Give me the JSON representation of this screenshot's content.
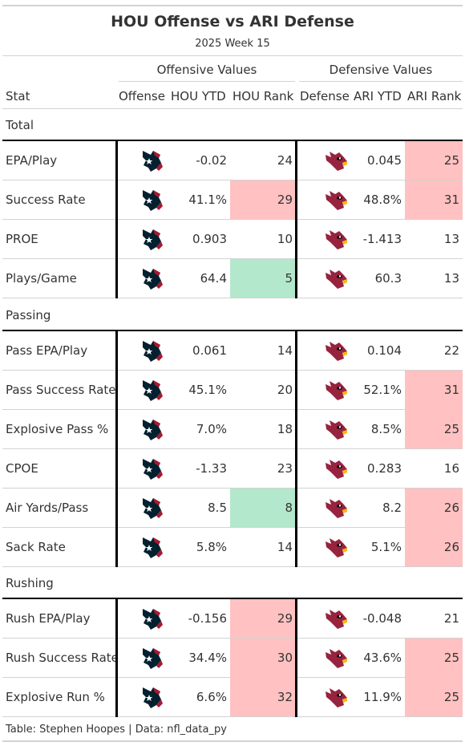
{
  "header": {
    "title": "HOU Offense vs ARI Defense",
    "subtitle": "2025 Week 15"
  },
  "spanners": {
    "offense": "Offensive Values",
    "defense": "Defensive Values"
  },
  "columns": {
    "stat": "Stat",
    "offense": "Offense",
    "off_ytd": "HOU YTD",
    "off_rank": "HOU Rank",
    "defense": "Defense",
    "def_ytd": "ARI YTD",
    "def_rank": "ARI Rank"
  },
  "colors": {
    "bad": "#ffc1c1",
    "good": "#b3e8cc",
    "texans_navy": "#03202f",
    "texans_red": "#a71930",
    "cardinals_red": "#97233f",
    "cardinals_yellow": "#ffb612"
  },
  "chart_data": {
    "type": "table",
    "groups": [
      {
        "label": "Total",
        "rows": [
          {
            "stat": "EPA/Play",
            "off_ytd": "-0.02",
            "off_rank": "24",
            "off_hl": "",
            "def_ytd": "0.045",
            "def_rank": "25",
            "def_hl": "bad"
          },
          {
            "stat": "Success Rate",
            "off_ytd": "41.1%",
            "off_rank": "29",
            "off_hl": "bad",
            "def_ytd": "48.8%",
            "def_rank": "31",
            "def_hl": "bad"
          },
          {
            "stat": "PROE",
            "off_ytd": "0.903",
            "off_rank": "10",
            "off_hl": "",
            "def_ytd": "-1.413",
            "def_rank": "13",
            "def_hl": ""
          },
          {
            "stat": "Plays/Game",
            "off_ytd": "64.4",
            "off_rank": "5",
            "off_hl": "good",
            "def_ytd": "60.3",
            "def_rank": "13",
            "def_hl": ""
          }
        ]
      },
      {
        "label": "Passing",
        "rows": [
          {
            "stat": "Pass EPA/Play",
            "off_ytd": "0.061",
            "off_rank": "14",
            "off_hl": "",
            "def_ytd": "0.104",
            "def_rank": "22",
            "def_hl": ""
          },
          {
            "stat": "Pass Success Rate",
            "off_ytd": "45.1%",
            "off_rank": "20",
            "off_hl": "",
            "def_ytd": "52.1%",
            "def_rank": "31",
            "def_hl": "bad"
          },
          {
            "stat": "Explosive Pass %",
            "off_ytd": "7.0%",
            "off_rank": "18",
            "off_hl": "",
            "def_ytd": "8.5%",
            "def_rank": "25",
            "def_hl": "bad"
          },
          {
            "stat": "CPOE",
            "off_ytd": "-1.33",
            "off_rank": "23",
            "off_hl": "",
            "def_ytd": "0.283",
            "def_rank": "16",
            "def_hl": ""
          },
          {
            "stat": "Air Yards/Pass",
            "off_ytd": "8.5",
            "off_rank": "8",
            "off_hl": "good",
            "def_ytd": "8.2",
            "def_rank": "26",
            "def_hl": "bad"
          },
          {
            "stat": "Sack Rate",
            "off_ytd": "5.8%",
            "off_rank": "14",
            "off_hl": "",
            "def_ytd": "5.1%",
            "def_rank": "26",
            "def_hl": "bad"
          }
        ]
      },
      {
        "label": "Rushing",
        "rows": [
          {
            "stat": "Rush EPA/Play",
            "off_ytd": "-0.156",
            "off_rank": "29",
            "off_hl": "bad",
            "def_ytd": "-0.048",
            "def_rank": "21",
            "def_hl": ""
          },
          {
            "stat": "Rush Success Rate",
            "off_ytd": "34.4%",
            "off_rank": "30",
            "off_hl": "bad",
            "def_ytd": "43.6%",
            "def_rank": "25",
            "def_hl": "bad"
          },
          {
            "stat": "Explosive Run %",
            "off_ytd": "6.6%",
            "off_rank": "32",
            "off_hl": "bad",
            "def_ytd": "11.9%",
            "def_rank": "25",
            "def_hl": "bad"
          }
        ]
      }
    ]
  },
  "footer": "Table: Stephen Hoopes | Data: nfl_data_py"
}
